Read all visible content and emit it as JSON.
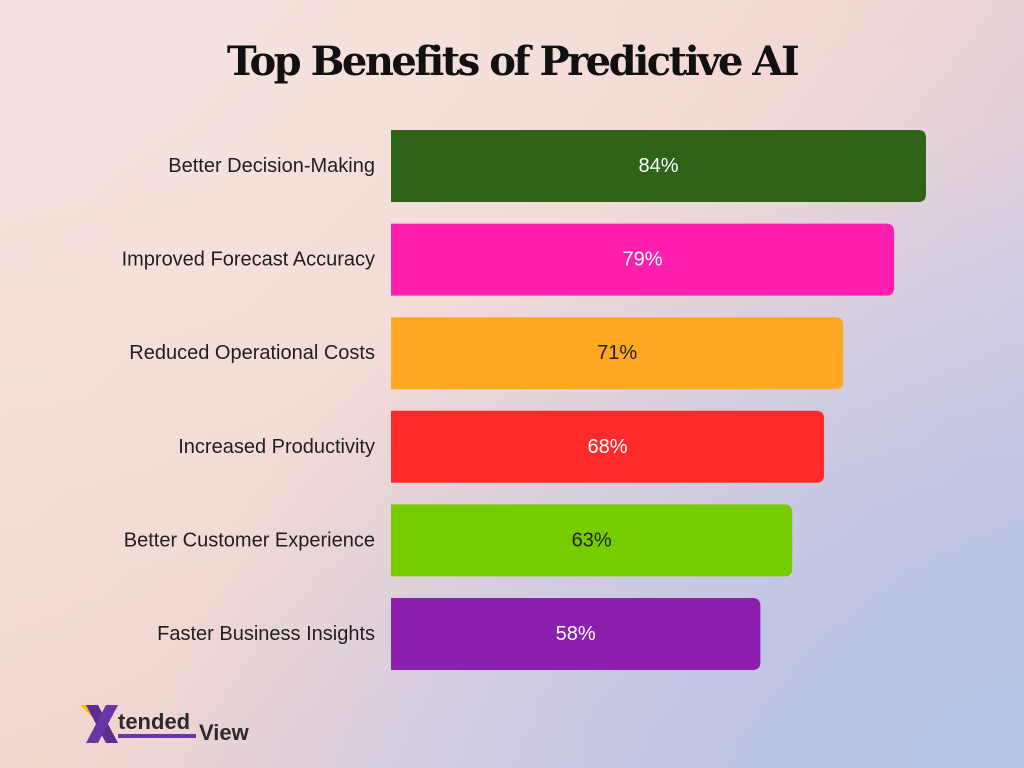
{
  "chart_data": {
    "type": "bar",
    "orientation": "horizontal",
    "title": "Top Benefits of Predictive AI",
    "categories": [
      "Better Decision-Making",
      "Improved Forecast Accuracy",
      "Reduced Operational Costs",
      "Increased Productivity",
      "Better Customer Experience",
      "Faster Business Insights"
    ],
    "values": [
      84,
      79,
      71,
      68,
      63,
      58
    ],
    "value_labels": [
      "84%",
      "79%",
      "71%",
      "68%",
      "63%",
      "58%"
    ],
    "unit": "%",
    "colors": [
      "#2f6317",
      "#ff1fae",
      "#ffa623",
      "#ff2b2b",
      "#77cc00",
      "#8b1fae"
    ],
    "label_colors": [
      "#ffffff",
      "#ffffff",
      "#222222",
      "#ffffff",
      "#222222",
      "#ffffff"
    ],
    "xlim": [
      0,
      84
    ],
    "grid": false,
    "legend": "none"
  },
  "logo": {
    "text_main": "tended",
    "text_end": "View",
    "mark": "X",
    "mark_color": "#5b2d90",
    "accent_color": "#f2c200"
  }
}
